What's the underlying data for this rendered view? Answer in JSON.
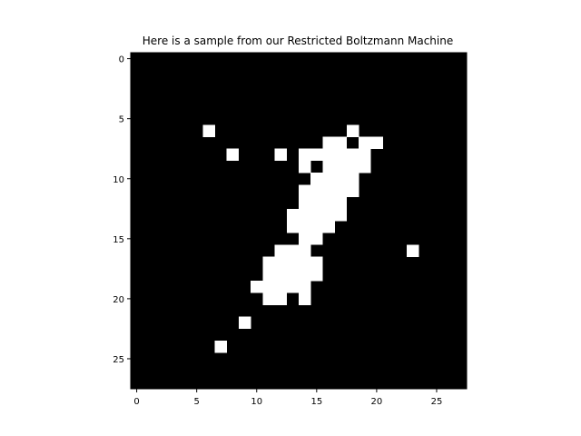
{
  "chart_data": {
    "type": "heatmap",
    "title": "Here is a sample from our Restricted Boltzmann Machine",
    "xlabel": "",
    "ylabel": "",
    "grid": false,
    "colormap": "gray",
    "rows": 28,
    "cols": 28,
    "xlim": [
      -0.5,
      27.5
    ],
    "ylim": [
      27.5,
      -0.5
    ],
    "x_ticks": [
      0,
      5,
      10,
      15,
      20,
      25
    ],
    "y_ticks": [
      0,
      5,
      10,
      15,
      20,
      25
    ],
    "x_tick_labels": [
      "0",
      "5",
      "10",
      "15",
      "20",
      "25"
    ],
    "y_tick_labels": [
      "0",
      "5",
      "10",
      "15",
      "20",
      "25"
    ],
    "on_pixels": [
      [
        6,
        6
      ],
      [
        6,
        18
      ],
      [
        7,
        16
      ],
      [
        7,
        17
      ],
      [
        7,
        19
      ],
      [
        7,
        20
      ],
      [
        8,
        8
      ],
      [
        8,
        12
      ],
      [
        8,
        14
      ],
      [
        8,
        15
      ],
      [
        8,
        16
      ],
      [
        8,
        17
      ],
      [
        8,
        18
      ],
      [
        8,
        19
      ],
      [
        9,
        14
      ],
      [
        9,
        16
      ],
      [
        9,
        17
      ],
      [
        9,
        18
      ],
      [
        9,
        19
      ],
      [
        10,
        15
      ],
      [
        10,
        16
      ],
      [
        10,
        17
      ],
      [
        10,
        18
      ],
      [
        11,
        14
      ],
      [
        11,
        15
      ],
      [
        11,
        16
      ],
      [
        11,
        17
      ],
      [
        11,
        18
      ],
      [
        12,
        14
      ],
      [
        12,
        15
      ],
      [
        12,
        16
      ],
      [
        12,
        17
      ],
      [
        13,
        13
      ],
      [
        13,
        14
      ],
      [
        13,
        15
      ],
      [
        13,
        16
      ],
      [
        13,
        17
      ],
      [
        14,
        13
      ],
      [
        14,
        14
      ],
      [
        14,
        15
      ],
      [
        14,
        16
      ],
      [
        15,
        14
      ],
      [
        15,
        15
      ],
      [
        16,
        12
      ],
      [
        16,
        13
      ],
      [
        16,
        14
      ],
      [
        16,
        23
      ],
      [
        17,
        11
      ],
      [
        17,
        12
      ],
      [
        17,
        13
      ],
      [
        17,
        14
      ],
      [
        17,
        15
      ],
      [
        18,
        11
      ],
      [
        18,
        12
      ],
      [
        18,
        13
      ],
      [
        18,
        14
      ],
      [
        18,
        15
      ],
      [
        19,
        10
      ],
      [
        19,
        11
      ],
      [
        19,
        12
      ],
      [
        19,
        13
      ],
      [
        19,
        14
      ],
      [
        20,
        11
      ],
      [
        20,
        12
      ],
      [
        20,
        14
      ],
      [
        22,
        9
      ],
      [
        24,
        7
      ]
    ],
    "colors": {
      "off": "#000000",
      "on": "#ffffff"
    }
  }
}
